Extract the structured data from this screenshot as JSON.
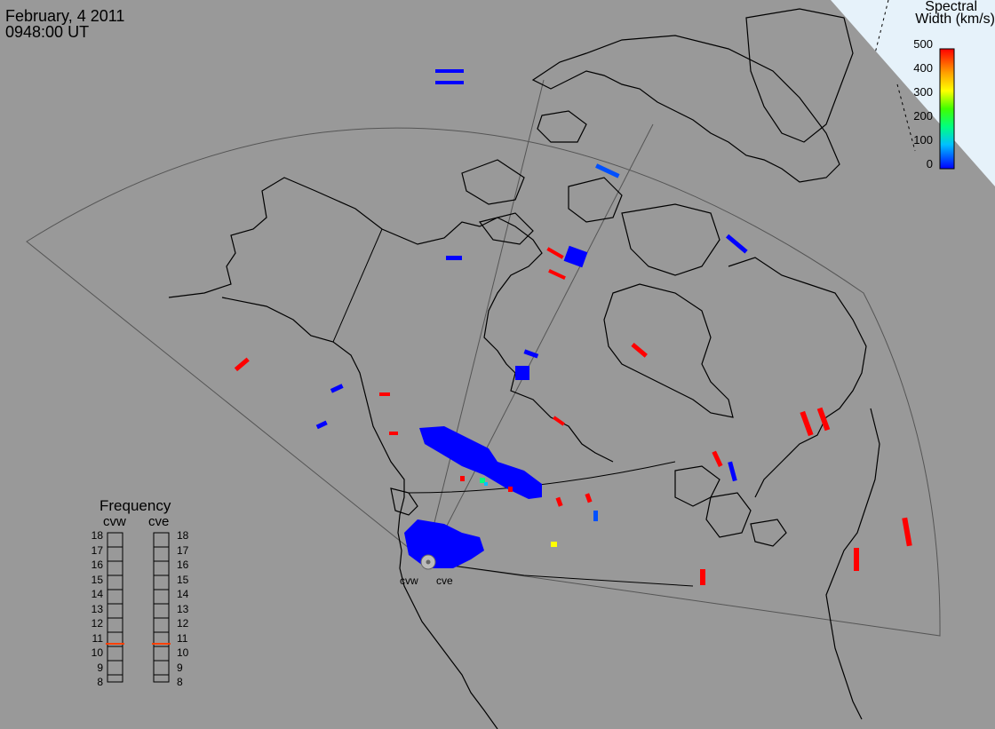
{
  "header": {
    "date": "February, 4 2011",
    "time": "0948:00 UT"
  },
  "legend": {
    "title_line1": "Spectral",
    "title_line2": "Width (km/s)",
    "ticks": [
      "500",
      "400",
      "300",
      "200",
      "100",
      "0"
    ],
    "colors": [
      "#0000ff",
      "#00c0ff",
      "#00ff80",
      "#40ff00",
      "#ffff00",
      "#ffa000",
      "#ff0000"
    ]
  },
  "frequency": {
    "title": "Frequency",
    "radars": [
      "cvw",
      "cve"
    ],
    "scale": [
      "18",
      "17",
      "16",
      "15",
      "14",
      "13",
      "12",
      "11",
      "10",
      "9",
      "8"
    ],
    "cvw_mhz": 10.9,
    "cve_mhz": 10.9,
    "marker_color": "#ff4000"
  },
  "sites": [
    "cvw",
    "cve"
  ],
  "colors": {
    "background": "#999999",
    "coast": "#000000",
    "daylight": "#e6f2fa"
  }
}
